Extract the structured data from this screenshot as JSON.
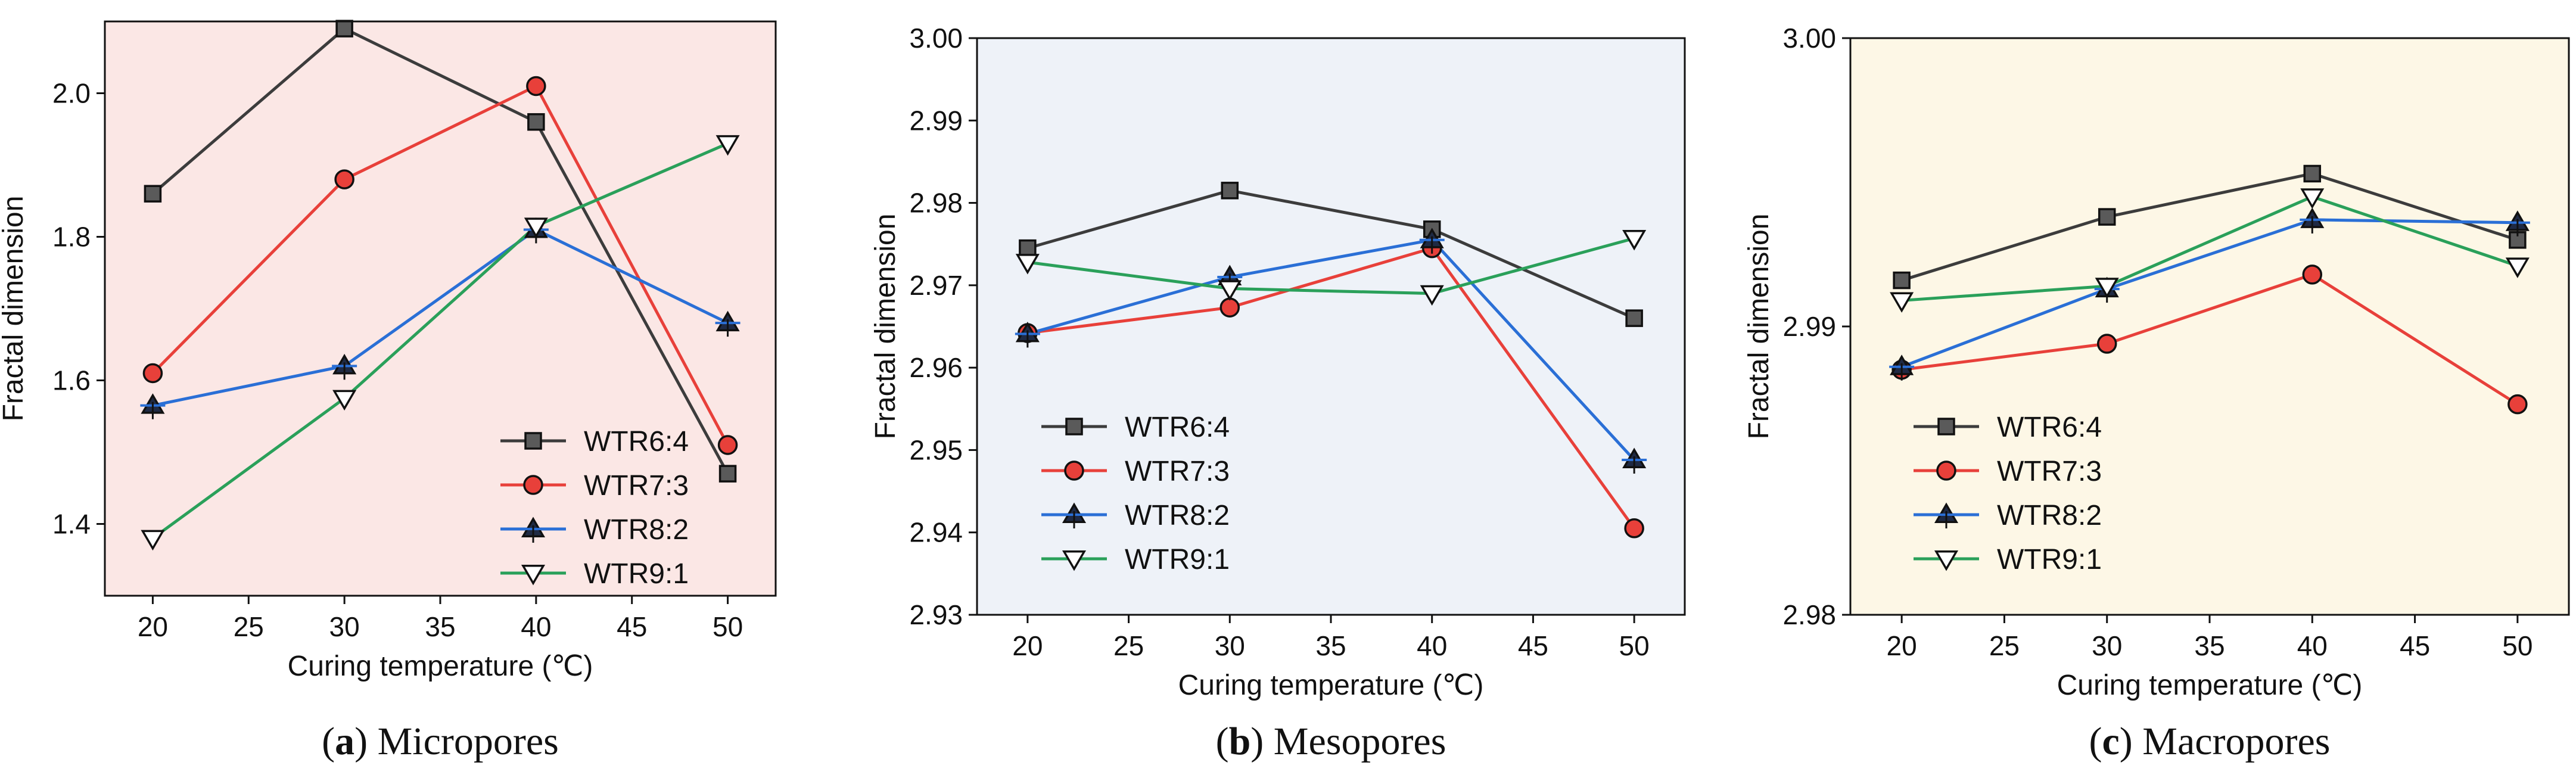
{
  "chart_data": [
    {
      "type": "line",
      "panel_id": "a",
      "caption_letter": "a",
      "caption_text": "Micropores",
      "background": "#fbe7e5",
      "xlabel": "Curing temperature (℃)",
      "ylabel": "Fractal dimension",
      "x": [
        20,
        30,
        40,
        50
      ],
      "xlim": [
        17.5,
        52.5
      ],
      "ylim": [
        1.3,
        2.1
      ],
      "xticks": [
        20,
        25,
        30,
        35,
        40,
        45,
        50
      ],
      "xtick_labels": [
        "20",
        "25",
        "30",
        "35",
        "40",
        "45",
        "50"
      ],
      "yticks": [
        1.4,
        1.6,
        1.8,
        2.0
      ],
      "ytick_labels": [
        "1.4",
        "1.6",
        "1.8",
        "2.0"
      ],
      "legend_position": "lower-right",
      "series": [
        {
          "name": "WTR6:4",
          "values": [
            1.86,
            2.09,
            1.96,
            1.47
          ]
        },
        {
          "name": "WTR7:3",
          "values": [
            1.61,
            1.88,
            2.01,
            1.51
          ]
        },
        {
          "name": "WTR8:2",
          "values": [
            1.565,
            1.62,
            1.81,
            1.68
          ]
        },
        {
          "name": "WTR9:1",
          "values": [
            1.38,
            1.575,
            1.815,
            1.93
          ]
        }
      ]
    },
    {
      "type": "line",
      "panel_id": "b",
      "caption_letter": "b",
      "caption_text": "Mesopores",
      "background": "#eef2f8",
      "xlabel": "Curing temperature (℃)",
      "ylabel": "Fractal dimension",
      "x": [
        20,
        30,
        40,
        50
      ],
      "xlim": [
        17.5,
        52.5
      ],
      "ylim": [
        2.93,
        3.0
      ],
      "xticks": [
        20,
        25,
        30,
        35,
        40,
        45,
        50
      ],
      "xtick_labels": [
        "20",
        "25",
        "30",
        "35",
        "40",
        "45",
        "50"
      ],
      "yticks": [
        2.93,
        2.94,
        2.95,
        2.96,
        2.97,
        2.98,
        2.99,
        3.0
      ],
      "ytick_labels": [
        "2.93",
        "2.94",
        "2.95",
        "2.96",
        "2.97",
        "2.98",
        "2.99",
        "3.00"
      ],
      "legend_position": "lower-left",
      "series": [
        {
          "name": "WTR6:4",
          "values": [
            2.9745,
            2.9815,
            2.9768,
            2.966
          ]
        },
        {
          "name": "WTR7:3",
          "values": [
            2.9642,
            2.9673,
            2.9745,
            2.9405
          ]
        },
        {
          "name": "WTR8:2",
          "values": [
            2.9641,
            2.971,
            2.9755,
            2.9488
          ]
        },
        {
          "name": "WTR9:1",
          "values": [
            2.9728,
            2.9696,
            2.969,
            2.9757
          ]
        }
      ]
    },
    {
      "type": "line",
      "panel_id": "c",
      "caption_letter": "c",
      "caption_text": "Macropores",
      "background": "#fdf7e6",
      "xlabel": "Curing temperature (℃)",
      "ylabel": "Fractal dimension",
      "x": [
        20,
        30,
        40,
        50
      ],
      "xlim": [
        17.5,
        52.5
      ],
      "ylim": [
        2.98,
        3.0
      ],
      "xticks": [
        20,
        25,
        30,
        35,
        40,
        45,
        50
      ],
      "xtick_labels": [
        "20",
        "25",
        "30",
        "35",
        "40",
        "45",
        "50"
      ],
      "yticks": [
        2.98,
        2.99,
        3.0
      ],
      "ytick_labels": [
        "2.98",
        "2.99",
        "3.00"
      ],
      "legend_position": "lower-left",
      "series": [
        {
          "name": "WTR6:4",
          "values": [
            2.9916,
            2.9938,
            2.9953,
            2.993
          ]
        },
        {
          "name": "WTR7:3",
          "values": [
            2.9885,
            2.9894,
            2.9918,
            2.9873
          ]
        },
        {
          "name": "WTR8:2",
          "values": [
            2.9886,
            2.9913,
            2.9937,
            2.9936
          ]
        },
        {
          "name": "WTR9:1",
          "values": [
            2.9909,
            2.9914,
            2.9945,
            2.9921
          ]
        }
      ]
    }
  ],
  "series_styles": [
    {
      "line_color": "#3c3c3c",
      "marker": "square",
      "marker_fill": "#5a5a5a"
    },
    {
      "line_color": "#e8403a",
      "marker": "circle",
      "marker_fill": "#e8403a"
    },
    {
      "line_color": "#2a6fd6",
      "marker": "triangle-up",
      "marker_fill": "#1f2a44"
    },
    {
      "line_color": "#2aa05a",
      "marker": "triangle-down",
      "marker_fill": "#ffffff"
    }
  ]
}
